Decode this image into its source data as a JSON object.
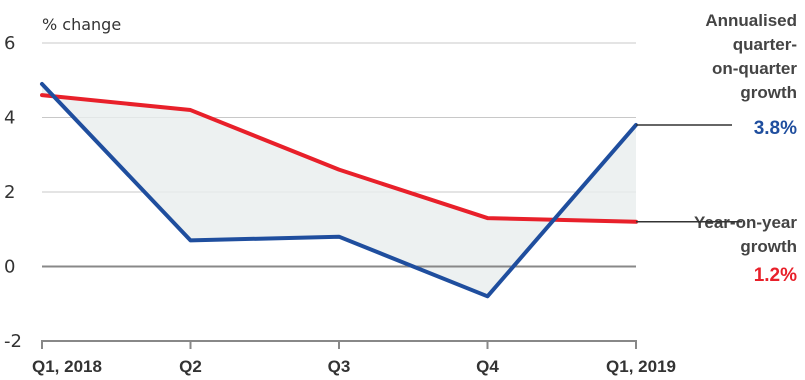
{
  "chart_data": {
    "type": "line",
    "categories": [
      "Q1, 2018",
      "Q2",
      "Q3",
      "Q4",
      "Q1, 2019"
    ],
    "ylabel": "% change",
    "ylim": [
      -2,
      6
    ],
    "yticks": [
      "6",
      "4",
      "2",
      "0",
      "-2"
    ],
    "grid": true,
    "series": [
      {
        "name": "Annualised quarter-on-quarter growth",
        "label_lines": [
          "Annualised",
          "quarter-",
          "on-quarter",
          "growth"
        ],
        "value_label": "3.8%",
        "color": "#1f4e9e",
        "values": [
          4.9,
          0.7,
          0.8,
          -0.8,
          3.8
        ]
      },
      {
        "name": "Year-on-year growth",
        "label_lines": [
          "Year-on-year",
          "growth"
        ],
        "value_label": "1.2%",
        "color": "#e8202a",
        "values": [
          4.6,
          4.2,
          2.6,
          1.3,
          1.2
        ]
      }
    ]
  }
}
